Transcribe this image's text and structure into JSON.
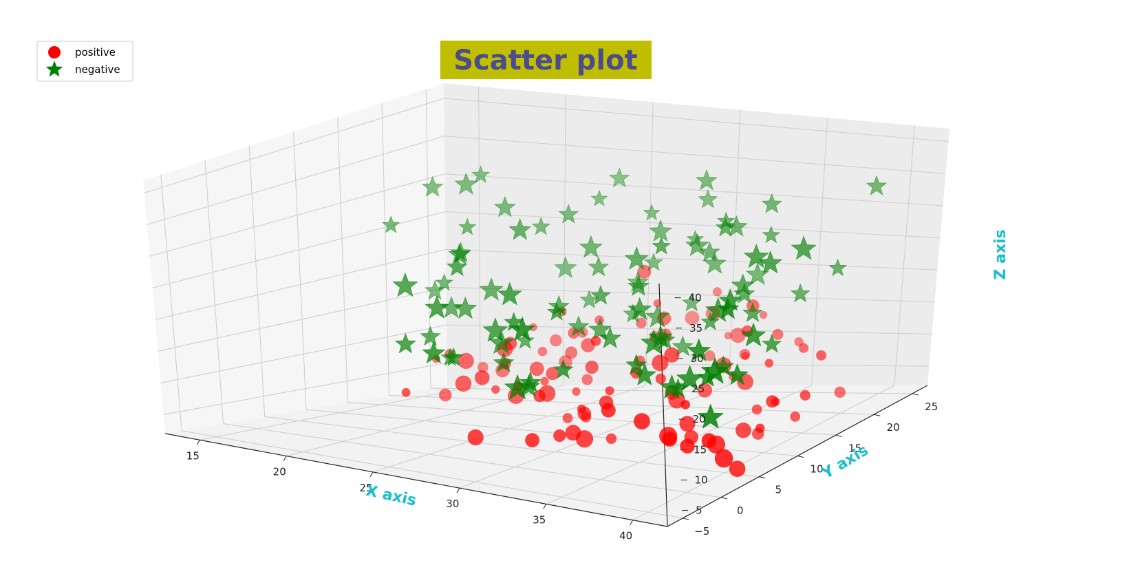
{
  "chart_data": {
    "type": "scatter",
    "projection": "3d",
    "title": "Scatter plot",
    "title_color": "#4b4b8f",
    "title_background": "#bfbf00",
    "xlabel": "X axis",
    "ylabel": "Y axis",
    "zlabel": "Z axis",
    "axis_label_color": "#17becf",
    "xlim": [
      13,
      42
    ],
    "ylim": [
      -7,
      27
    ],
    "zlim": [
      2,
      42
    ],
    "xticks": [
      15,
      20,
      25,
      30,
      35,
      40
    ],
    "yticks": [
      -5,
      0,
      5,
      10,
      15,
      20,
      25
    ],
    "zticks": [
      5,
      10,
      15,
      20,
      25,
      30,
      35,
      40
    ],
    "grid": true,
    "legend_position": "top-left",
    "series": [
      {
        "name": "positive",
        "marker": "circle",
        "color": "#ff0000",
        "points": [
          [
            16.0,
            19.7,
            7.4
          ],
          [
            16.8,
            19.7,
            8.2
          ],
          [
            17.0,
            23.3,
            5.4
          ],
          [
            17.4,
            17.9,
            3.0
          ],
          [
            19.3,
            21.0,
            5.8
          ],
          [
            19.3,
            16.6,
            8.5
          ],
          [
            20.4,
            22.5,
            11.5
          ],
          [
            20.9,
            22.6,
            8.1
          ],
          [
            20.9,
            18.1,
            7.9
          ],
          [
            21.4,
            23.2,
            9.5
          ],
          [
            21.7,
            23.8,
            6.3
          ],
          [
            21.8,
            16.2,
            10.8
          ],
          [
            22.0,
            14.6,
            5.5
          ],
          [
            22.3,
            22.1,
            14.1
          ],
          [
            22.3,
            24.6,
            10.2
          ],
          [
            23.1,
            21.6,
            8.5
          ],
          [
            23.1,
            17.4,
            7.7
          ],
          [
            23.2,
            14.6,
            4.8
          ],
          [
            23.7,
            17.1,
            6.1
          ],
          [
            24.8,
            21.5,
            13.4
          ],
          [
            24.6,
            20.5,
            5.2
          ],
          [
            24.7,
            16.0,
            7.8
          ],
          [
            25.4,
            18.9,
            10.9
          ],
          [
            26.2,
            12.2,
            6.7
          ],
          [
            26.2,
            15.8,
            5.5
          ],
          [
            26.5,
            14.1,
            2.3
          ],
          [
            26.6,
            22.9,
            12.6
          ],
          [
            27.6,
            14.8,
            9.8
          ],
          [
            27.4,
            21.5,
            20.8
          ],
          [
            27.7,
            26.9,
            11.7
          ],
          [
            28.2,
            21.5,
            16.3
          ],
          [
            28.3,
            12.6,
            3.4
          ],
          [
            28.8,
            18.2,
            9.4
          ],
          [
            29.1,
            10.7,
            5.0
          ],
          [
            29.1,
            20.5,
            14.7
          ],
          [
            29.6,
            25.5,
            13.1
          ],
          [
            29.7,
            9.1,
            6.6
          ],
          [
            29.8,
            25.5,
            16.3
          ],
          [
            29.7,
            6.3,
            3.8
          ],
          [
            30.1,
            18.6,
            13.3
          ],
          [
            30.5,
            6.3,
            4.5
          ],
          [
            30.6,
            7.5,
            3.0
          ],
          [
            30.6,
            25.4,
            10.0
          ],
          [
            31.2,
            9.6,
            2.2
          ],
          [
            31.4,
            12.3,
            11.0
          ],
          [
            31.8,
            7.7,
            8.9
          ],
          [
            32.4,
            14.7,
            7.0
          ],
          [
            32.5,
            22.6,
            11.6
          ],
          [
            33.3,
            24.0,
            14.0
          ],
          [
            33.3,
            11.3,
            11.1
          ],
          [
            33.6,
            21.2,
            9.6
          ],
          [
            33.8,
            3.7,
            10.5
          ],
          [
            34.5,
            14.3,
            8.0
          ],
          [
            34.6,
            16.4,
            10.7
          ],
          [
            35.0,
            16.8,
            8.8
          ],
          [
            35.8,
            23.3,
            10.6
          ],
          [
            36.4,
            15.4,
            16.9
          ],
          [
            36.6,
            8.1,
            4.7
          ],
          [
            37.1,
            6.5,
            7.9
          ],
          [
            37.5,
            3.2,
            8.1
          ],
          [
            38.0,
            4.3,
            12.6
          ],
          [
            38.1,
            13.2,
            6.4
          ],
          [
            38.7,
            12.1,
            3.4
          ],
          [
            39.1,
            -0.1,
            10.3
          ],
          [
            39.6,
            8.2,
            6.6
          ],
          [
            40.2,
            3.4,
            7.6
          ],
          [
            40.4,
            10.5,
            9.9
          ],
          [
            40.5,
            12.9,
            6.0
          ],
          [
            40.7,
            18.2,
            6.5
          ],
          [
            41.2,
            0.3,
            10.7
          ],
          [
            41.3,
            3.7,
            3.9
          ],
          [
            41.6,
            1.3,
            7.3
          ],
          [
            41.3,
            6.6,
            8.5
          ],
          [
            41.4,
            14.0,
            15.2
          ],
          [
            41.8,
            7.0,
            12.7
          ],
          [
            39.3,
            1.7,
            8.1
          ],
          [
            36.3,
            2.5,
            10.4
          ],
          [
            37.0,
            14.0,
            10.0
          ],
          [
            38.6,
            13.5,
            13.6
          ],
          [
            41.9,
            11.0,
            11.0
          ],
          [
            36.1,
            19.9,
            13.7
          ],
          [
            35.0,
            19.0,
            18.4
          ],
          [
            33.7,
            11.8,
            14.6
          ],
          [
            32.6,
            12.7,
            12.6
          ],
          [
            31.3,
            9.2,
            9.8
          ],
          [
            28.6,
            13.2,
            14.7
          ],
          [
            24.2,
            19.6,
            12.2
          ],
          [
            22.9,
            14.6,
            12.4
          ],
          [
            21.9,
            13.2,
            7.7
          ],
          [
            20.1,
            14.6,
            6.0
          ],
          [
            18.6,
            10.7,
            5.6
          ],
          [
            24.5,
            12.2,
            7.4
          ],
          [
            27.0,
            9.6,
            7.6
          ],
          [
            28.8,
            4.8,
            3.5
          ],
          [
            24.9,
            6.0,
            2.2
          ],
          [
            34.9,
            9.9,
            9.0
          ],
          [
            33.4,
            21.7,
            9.1
          ],
          [
            38.3,
            18.5,
            12.8
          ],
          [
            30.3,
            23.8,
            7.8
          ],
          [
            26.1,
            25.7,
            9.4
          ]
        ]
      },
      {
        "name": "negative",
        "marker": "star",
        "color": "#008000",
        "points": [
          [
            13.4,
            19.9,
            25.4
          ],
          [
            14.5,
            22.6,
            29.9
          ],
          [
            16.2,
            24.8,
            31.1
          ],
          [
            16.5,
            22.5,
            30.7
          ],
          [
            15.5,
            20.7,
            16.5
          ],
          [
            16.6,
            19.6,
            18.1
          ],
          [
            18.9,
            22.2,
            28.1
          ],
          [
            20.7,
            22.8,
            25.5
          ],
          [
            21.6,
            23.9,
            19.4
          ],
          [
            22.4,
            22.6,
            27.6
          ],
          [
            22.8,
            25.4,
            28.7
          ],
          [
            23.5,
            26.3,
            31.3
          ],
          [
            23.9,
            22.1,
            15.9
          ],
          [
            24.8,
            20.4,
            24.3
          ],
          [
            25.3,
            20.3,
            21.6
          ],
          [
            26.4,
            24.3,
            27.8
          ],
          [
            26.6,
            22.4,
            18.7
          ],
          [
            27.5,
            22.4,
            21.7
          ],
          [
            28.2,
            21.7,
            26.7
          ],
          [
            29.4,
            24.8,
            30.0
          ],
          [
            29.7,
            22.8,
            25.3
          ],
          [
            30.4,
            22.5,
            34.2
          ],
          [
            30.6,
            20.7,
            17.1
          ],
          [
            31.6,
            21.3,
            22.8
          ],
          [
            32.0,
            19.8,
            25.4
          ],
          [
            32.7,
            20.2,
            30.0
          ],
          [
            33.6,
            19.6,
            29.7
          ],
          [
            34.3,
            16.8,
            31.4
          ],
          [
            34.4,
            20.7,
            22.0
          ],
          [
            35.3,
            20.2,
            33.2
          ],
          [
            36.0,
            18.8,
            29.5
          ],
          [
            36.3,
            14.9,
            24.2
          ],
          [
            37.1,
            14.5,
            20.4
          ],
          [
            38.3,
            12.2,
            31.0
          ],
          [
            39.3,
            7.0,
            27.9
          ],
          [
            40.2,
            10.3,
            19.1
          ],
          [
            40.8,
            6.7,
            23.1
          ],
          [
            41.2,
            2.7,
            30.3
          ],
          [
            41.0,
            12.2,
            33.2
          ],
          [
            41.2,
            20.3,
            37.5
          ],
          [
            40.3,
            18.0,
            26.0
          ],
          [
            39.4,
            11.6,
            30.8
          ],
          [
            38.2,
            18.0,
            21.5
          ],
          [
            37.2,
            10.0,
            23.6
          ],
          [
            35.6,
            16.6,
            21.7
          ],
          [
            34.5,
            14.8,
            18.2
          ],
          [
            33.6,
            10.6,
            17.9
          ],
          [
            32.4,
            13.7,
            15.5
          ],
          [
            31.7,
            18.9,
            26.8
          ],
          [
            30.0,
            12.0,
            16.0
          ],
          [
            29.5,
            7.3,
            13.4
          ],
          [
            28.9,
            3.7,
            21.2
          ],
          [
            27.8,
            6.8,
            11.1
          ],
          [
            27.0,
            6.9,
            10.0
          ],
          [
            26.6,
            9.1,
            9.1
          ],
          [
            25.8,
            9.1,
            18.6
          ],
          [
            25.1,
            10.1,
            22.1
          ],
          [
            24.1,
            11.3,
            11.1
          ],
          [
            23.3,
            12.7,
            13.3
          ],
          [
            22.4,
            6.4,
            14.0
          ],
          [
            21.7,
            10.2,
            11.7
          ],
          [
            21.0,
            9.8,
            19.0
          ],
          [
            20.8,
            12.7,
            23.8
          ],
          [
            20.4,
            17.5,
            18.5
          ],
          [
            19.8,
            15.0,
            24.4
          ],
          [
            19.0,
            15.3,
            9.3
          ],
          [
            19.9,
            15.4,
            16.5
          ],
          [
            19.3,
            9.4,
            13.3
          ],
          [
            18.4,
            11.4,
            20.9
          ],
          [
            18.2,
            18.4,
            23.0
          ],
          [
            17.3,
            21.0,
            25.5
          ],
          [
            17.7,
            18.2,
            15.2
          ],
          [
            18.8,
            13.4,
            12.9
          ],
          [
            23.4,
            11.8,
            15.5
          ],
          [
            25.9,
            16.7,
            14.6
          ],
          [
            26.7,
            12.4,
            18.9
          ],
          [
            27.5,
            16.0,
            14.8
          ],
          [
            28.2,
            14.6,
            20.7
          ],
          [
            29.5,
            16.2,
            25.7
          ],
          [
            30.2,
            15.0,
            22.4
          ],
          [
            31.4,
            15.2,
            28.7
          ],
          [
            32.0,
            11.4,
            21.3
          ],
          [
            33.0,
            8.9,
            14.4
          ],
          [
            34.1,
            8.7,
            18.3
          ],
          [
            34.8,
            6.1,
            15.0
          ],
          [
            35.9,
            7.9,
            12.2
          ],
          [
            36.8,
            5.2,
            14.3
          ],
          [
            37.6,
            9.9,
            15.0
          ],
          [
            38.4,
            4.0,
            17.0
          ],
          [
            39.3,
            3.2,
            22.4
          ],
          [
            40.3,
            2.1,
            19.3
          ],
          [
            41.3,
            0.3,
            14.5
          ],
          [
            41.6,
            3.0,
            19.6
          ],
          [
            41.9,
            -0.4,
            22.7
          ],
          [
            24.6,
            17.0,
            17.2
          ],
          [
            23.0,
            16.2,
            12.2
          ],
          [
            22.0,
            17.7,
            27.4
          ],
          [
            27.4,
            20.2,
            15.2
          ],
          [
            29.8,
            18.2,
            16.1
          ],
          [
            31.7,
            17.4,
            12.4
          ]
        ]
      }
    ]
  }
}
